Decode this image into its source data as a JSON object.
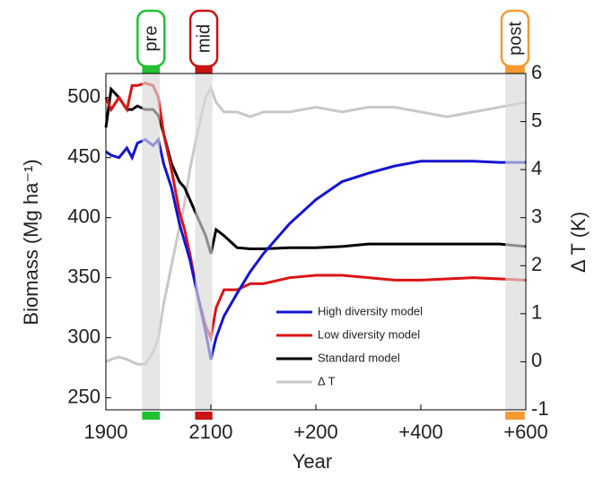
{
  "chart_data": {
    "type": "line",
    "x_label": "Year",
    "y_label": "Biomass (Mg ha⁻¹)",
    "y2_label": "Δ T (K)",
    "x": [
      1900,
      1910,
      1925,
      1940,
      1950,
      1960,
      1975,
      1990,
      2000,
      2010,
      2025,
      2040,
      2050,
      2060,
      2075,
      2090,
      2100,
      2110,
      2125,
      2150,
      2175,
      2200,
      2250,
      2300,
      2350,
      2400,
      2450,
      2500,
      2550,
      2600,
      2650,
      2700
    ],
    "series": [
      {
        "name": "High diversity model",
        "color": "#1414d2",
        "values": [
          455,
          452,
          450,
          458,
          450,
          462,
          465,
          460,
          465,
          445,
          425,
          395,
          380,
          365,
          335,
          305,
          282,
          300,
          318,
          337,
          355,
          370,
          395,
          415,
          430,
          437,
          443,
          447,
          447,
          447,
          446,
          446
        ]
      },
      {
        "name": "Low diversity model",
        "color": "#dc1414",
        "values": [
          500,
          490,
          500,
          490,
          510,
          510,
          512,
          510,
          500,
          470,
          440,
          405,
          390,
          370,
          335,
          310,
          300,
          325,
          340,
          340,
          345,
          345,
          350,
          352,
          352,
          350,
          348,
          348,
          349,
          350,
          349,
          348
        ]
      },
      {
        "name": "Standard model",
        "color": "#000000",
        "values": [
          475,
          507,
          500,
          490,
          490,
          493,
          490,
          490,
          485,
          470,
          445,
          430,
          425,
          415,
          400,
          385,
          370,
          390,
          385,
          375,
          374,
          374,
          375,
          375,
          376,
          378,
          378,
          378,
          378,
          378,
          378,
          376
        ]
      },
      {
        "name": "Δ T",
        "color": "#c8c8c8",
        "axis": "y2",
        "values": [
          0,
          0.05,
          0.1,
          0.05,
          0,
          -0.05,
          -0.05,
          0.2,
          0.5,
          1.2,
          2.0,
          2.8,
          3.3,
          4.0,
          4.8,
          5.5,
          5.7,
          5.4,
          5.2,
          5.2,
          5.1,
          5.2,
          5.2,
          5.3,
          5.2,
          5.3,
          5.3,
          5.2,
          5.1,
          5.2,
          5.3,
          5.4
        ]
      }
    ],
    "periods": [
      {
        "label": "pre",
        "range": [
          1969,
          2003
        ],
        "color": "#22c033"
      },
      {
        "label": "mid",
        "range": [
          2070,
          2103
        ],
        "color": "#c81414"
      },
      {
        "label": "post",
        "range": [
          2661,
          2698
        ],
        "color": "#f59a30"
      }
    ],
    "xlim": [
      1900,
      2700
    ],
    "xticks": [
      1900,
      2100,
      {
        "value": 2300,
        "label": "+200"
      },
      {
        "value": 2500,
        "label": "+400"
      },
      {
        "value": 2700,
        "label": "+600"
      }
    ],
    "ylim": [
      240,
      520
    ],
    "yticks": [
      250,
      300,
      350,
      400,
      450,
      500
    ],
    "y2lim": [
      -1,
      6
    ],
    "y2ticks": [
      -1,
      0,
      1,
      2,
      3,
      4,
      5,
      6
    ]
  }
}
